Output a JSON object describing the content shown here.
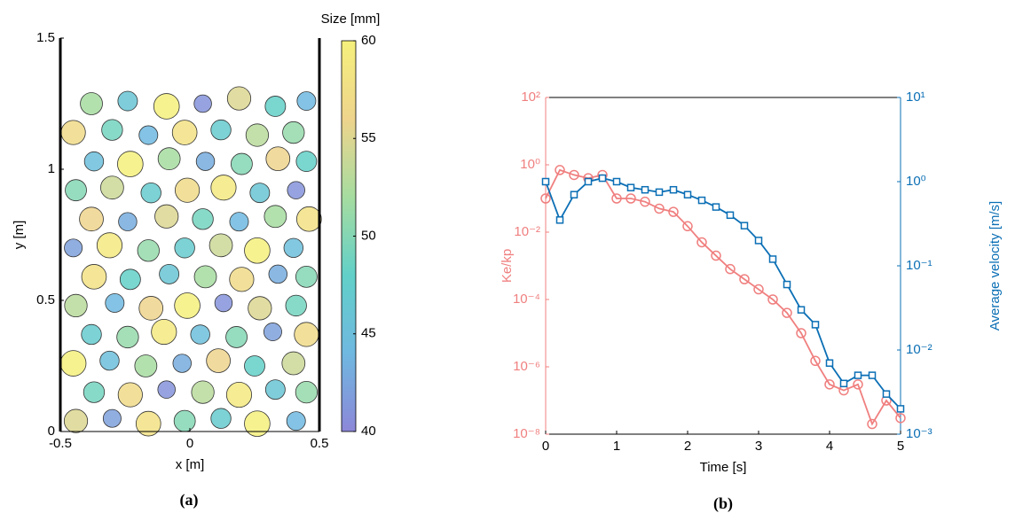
{
  "chart_data": [
    {
      "type": "particles",
      "caption": "(a)",
      "xlabel": "x [m]",
      "ylabel": "y [m]",
      "colorbar_title": "Size [mm]",
      "xlim": [
        -0.5,
        0.5
      ],
      "ylim": [
        0,
        1.5
      ],
      "xticks": [
        -0.5,
        0,
        0.5
      ],
      "yticks": [
        0,
        0.5,
        1,
        1.5
      ],
      "clim": [
        40,
        60
      ],
      "cticks": [
        40,
        45,
        50,
        55,
        60
      ],
      "colormap": [
        "#8c87d8",
        "#6fb8e0",
        "#62d0c8",
        "#a6dca0",
        "#eed48c",
        "#f5f07c"
      ],
      "x": [
        -0.44,
        -0.3,
        -0.16,
        -0.02,
        0.12,
        0.26,
        0.41,
        -0.37,
        -0.23,
        -0.09,
        0.05,
        0.19,
        0.33,
        0.45,
        -0.45,
        -0.31,
        -0.17,
        -0.03,
        0.11,
        0.25,
        0.4,
        -0.38,
        -0.24,
        -0.1,
        0.04,
        0.18,
        0.32,
        0.45,
        -0.44,
        -0.29,
        -0.15,
        -0.01,
        0.13,
        0.27,
        0.41,
        -0.37,
        -0.23,
        -0.08,
        0.06,
        0.2,
        0.34,
        0.45,
        -0.45,
        -0.31,
        -0.16,
        -0.02,
        0.12,
        0.26,
        0.4,
        -0.38,
        -0.24,
        -0.09,
        0.05,
        0.19,
        0.33,
        0.46,
        -0.44,
        -0.3,
        -0.15,
        -0.01,
        0.13,
        0.27,
        0.41,
        -0.37,
        -0.23,
        -0.08,
        0.06,
        0.2,
        0.34,
        0.45,
        -0.45,
        -0.3,
        -0.16,
        -0.02,
        0.12,
        0.26,
        0.4,
        -0.38,
        -0.24,
        -0.09,
        0.05,
        0.19,
        0.33,
        0.45
      ],
      "y": [
        0.04,
        0.05,
        0.03,
        0.04,
        0.05,
        0.03,
        0.04,
        0.15,
        0.14,
        0.16,
        0.15,
        0.14,
        0.16,
        0.15,
        0.26,
        0.27,
        0.25,
        0.26,
        0.27,
        0.25,
        0.26,
        0.37,
        0.36,
        0.38,
        0.37,
        0.36,
        0.38,
        0.37,
        0.48,
        0.49,
        0.47,
        0.48,
        0.49,
        0.47,
        0.48,
        0.59,
        0.58,
        0.6,
        0.59,
        0.58,
        0.6,
        0.59,
        0.7,
        0.71,
        0.69,
        0.7,
        0.71,
        0.69,
        0.7,
        0.81,
        0.8,
        0.82,
        0.81,
        0.8,
        0.82,
        0.81,
        0.92,
        0.93,
        0.91,
        0.92,
        0.93,
        0.91,
        0.92,
        1.03,
        1.02,
        1.04,
        1.03,
        1.02,
        1.04,
        1.03,
        1.14,
        1.15,
        1.13,
        1.14,
        1.15,
        1.13,
        1.14,
        1.25,
        1.26,
        1.24,
        1.25,
        1.27,
        1.24,
        1.26
      ],
      "values": [
        55,
        42,
        58,
        50,
        47,
        60,
        44,
        49,
        57,
        41,
        53,
        59,
        46,
        51,
        60,
        45,
        52,
        43,
        56,
        48,
        54,
        47,
        51,
        59,
        45,
        50,
        42,
        57,
        53,
        44,
        56,
        60,
        41,
        55,
        49,
        58,
        48,
        46,
        52,
        57,
        43,
        50,
        42,
        59,
        51,
        47,
        54,
        60,
        45,
        56,
        43,
        55,
        49,
        44,
        52,
        58,
        50,
        54,
        47,
        57,
        59,
        46,
        41,
        45,
        60,
        52,
        43,
        50,
        56,
        48,
        57,
        49,
        44,
        58,
        47,
        53,
        51,
        52,
        46,
        60,
        41,
        55,
        48,
        44
      ]
    },
    {
      "type": "line",
      "caption": "(b)",
      "xlabel": "Time [s]",
      "ylabel": "Ke/kp",
      "y2label": "Average velocity [m/s]",
      "xlim": [
        0,
        5
      ],
      "xticks": [
        0,
        1,
        2,
        3,
        4,
        5
      ],
      "ylim": [
        1e-08,
        100
      ],
      "y2lim": [
        0.001,
        10
      ],
      "log_y": true,
      "log_y2": true,
      "yticks": [
        {
          "value": 1e-08,
          "label": "10⁻⁸"
        },
        {
          "value": 1e-06,
          "label": "10⁻⁶"
        },
        {
          "value": 0.0001,
          "label": "10⁻⁴"
        },
        {
          "value": 0.01,
          "label": "10⁻²"
        },
        {
          "value": 1,
          "label": "10⁰"
        },
        {
          "value": 100,
          "label": "10²"
        }
      ],
      "y2ticks": [
        {
          "value": 0.001,
          "label": "10⁻³"
        },
        {
          "value": 0.01,
          "label": "10⁻²"
        },
        {
          "value": 0.1,
          "label": "10⁻¹"
        },
        {
          "value": 1,
          "label": "10⁰"
        },
        {
          "value": 10,
          "label": "10¹"
        }
      ],
      "x": [
        0,
        0.2,
        0.4,
        0.6,
        0.8,
        1.0,
        1.2,
        1.4,
        1.6,
        1.8,
        2.0,
        2.2,
        2.4,
        2.6,
        2.8,
        3.0,
        3.2,
        3.4,
        3.6,
        3.8,
        4.0,
        4.2,
        4.4,
        4.6,
        4.8,
        5.0
      ],
      "series": [
        {
          "name": "Ke/kp",
          "color": "#f07f7f",
          "marker": "circle",
          "axis": "y",
          "values": [
            0.1,
            0.7,
            0.5,
            0.4,
            0.5,
            0.1,
            0.1,
            0.08,
            0.05,
            0.04,
            0.015,
            0.005,
            0.002,
            0.0008,
            0.0004,
            0.0002,
            0.0001,
            4e-05,
            1e-05,
            1.5e-06,
            3e-07,
            2e-07,
            3e-07,
            2e-08,
            1e-07,
            3e-08
          ]
        },
        {
          "name": "Average velocity",
          "color": "#0b6fb5",
          "marker": "square",
          "axis": "y2",
          "values": [
            1.0,
            0.35,
            0.7,
            1.0,
            1.1,
            1.0,
            0.85,
            0.8,
            0.75,
            0.8,
            0.7,
            0.6,
            0.5,
            0.4,
            0.3,
            0.2,
            0.12,
            0.06,
            0.03,
            0.02,
            0.007,
            0.004,
            0.005,
            0.005,
            0.003,
            0.002
          ]
        }
      ]
    }
  ]
}
